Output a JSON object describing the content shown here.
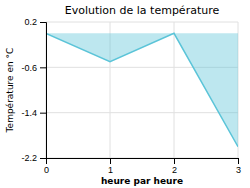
{
  "chart_data": {
    "type": "area",
    "title": "Evolution de la température",
    "xlabel": "heure par heure",
    "ylabel": "Température en °C",
    "x": [
      0,
      1,
      2,
      3
    ],
    "values": [
      0.0,
      -0.5,
      0.0,
      -2.0
    ],
    "color": "#5bc4d8",
    "xlim": [
      0,
      3
    ],
    "ylim": [
      -2.2,
      0.2
    ],
    "xticks": [
      0,
      1,
      2,
      3
    ],
    "yticks": [
      0.2,
      -0.6,
      -1.4,
      -2.2
    ],
    "grid": true
  }
}
